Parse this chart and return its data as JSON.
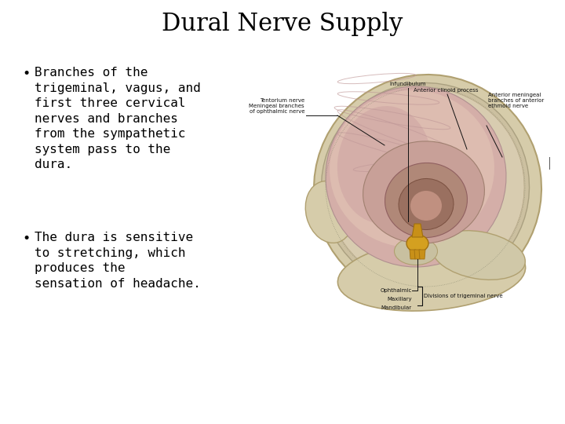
{
  "title": "Dural Nerve Supply",
  "title_fontsize": 22,
  "title_font": "serif",
  "background_color": "#ffffff",
  "text_color": "#000000",
  "bullet1_lines": [
    "Branches of the",
    "trigeminal, vagus, and",
    "first three cervical",
    "nerves and branches",
    "from the sympathetic",
    "system pass to the",
    "dura."
  ],
  "bullet2_lines": [
    "The dura is sensitive",
    "to stretching, which",
    "produces the",
    "sensation of headache."
  ],
  "bullet_fontsize": 11.5,
  "bullet_font": "monospace",
  "skull_bone": "#d6ccaa",
  "skull_edge": "#b0a070",
  "dura_color": "#c8bea0",
  "brain_outer": "#d4b0a8",
  "brain_mid": "#c8a098",
  "ventricle_color": "#c0908a",
  "deep_color": "#a07060",
  "pituitary_color": "#d4a020",
  "line_color": "#111111",
  "label_fontsize": 5.0
}
